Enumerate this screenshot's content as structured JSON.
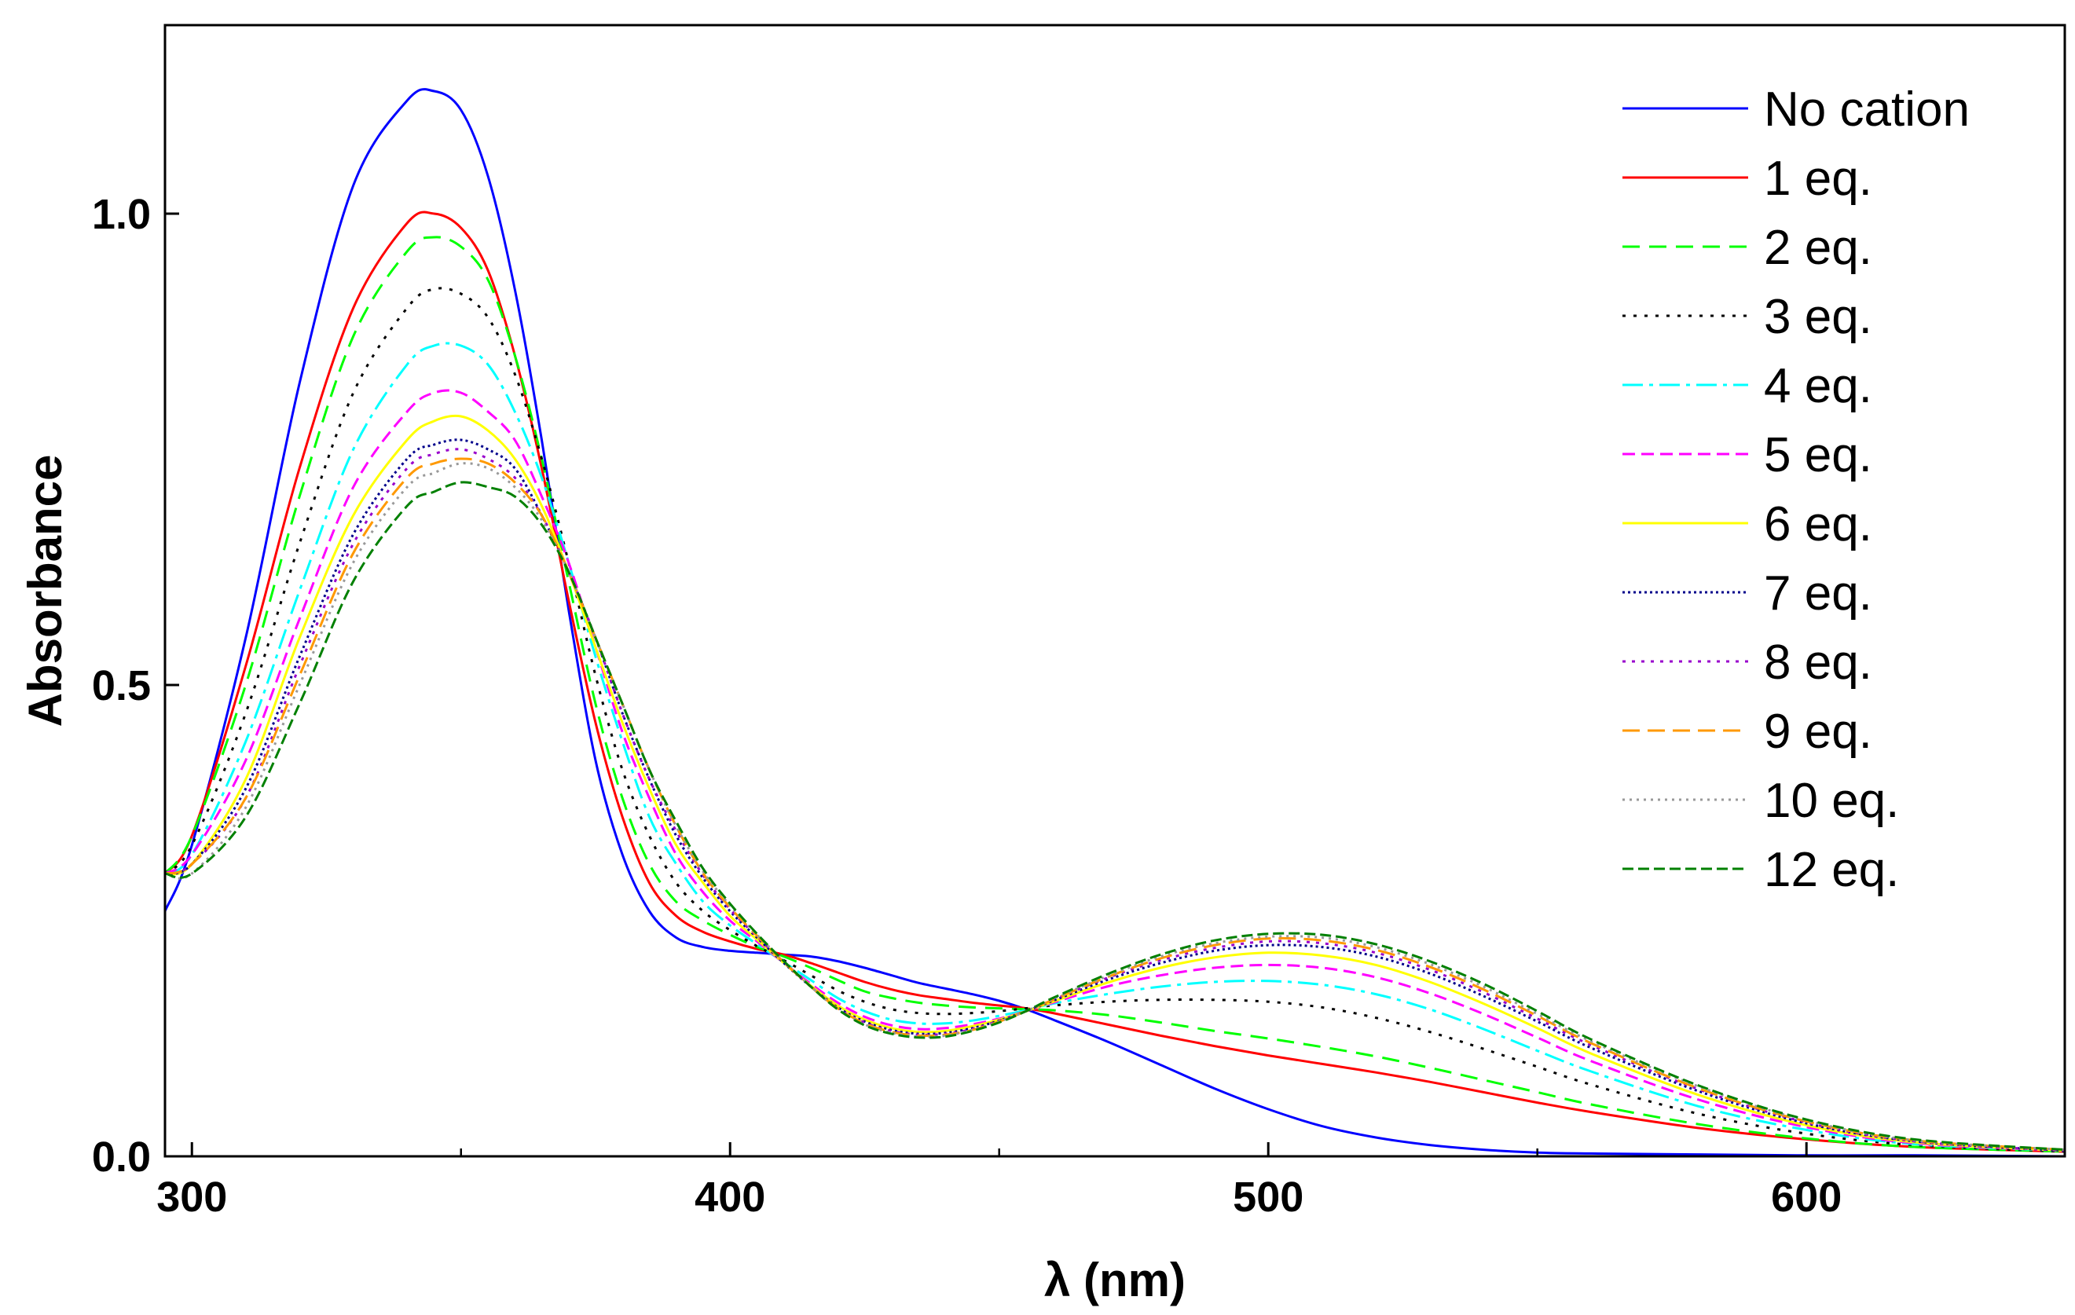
{
  "chart_data": {
    "type": "line",
    "title": "",
    "xlabel": "λ (nm)",
    "ylabel": "Absorbance",
    "xlim": [
      295,
      648
    ],
    "ylim": [
      0.0,
      1.2
    ],
    "xticks": [
      300,
      400,
      500,
      600
    ],
    "yticks": [
      0.0,
      0.5,
      1.0
    ],
    "xtick_labels": [
      "300",
      "400",
      "500",
      "600"
    ],
    "ytick_labels": [
      "0.0",
      "0.5",
      "1.0"
    ],
    "grid": false,
    "legend_position": "top-right",
    "x": [
      295,
      300,
      310,
      320,
      330,
      340,
      345,
      350,
      355,
      360,
      365,
      370,
      375,
      380,
      385,
      390,
      395,
      400,
      405,
      410,
      415,
      420,
      425,
      430,
      435,
      440,
      445,
      450,
      455,
      460,
      470,
      480,
      490,
      500,
      510,
      520,
      530,
      540,
      550,
      560,
      580,
      600,
      620,
      648
    ],
    "series": [
      {
        "name": "No cation",
        "color": "#0000ff",
        "dash": "",
        "values": [
          0.26,
          0.33,
          0.55,
          0.82,
          1.03,
          1.12,
          1.13,
          1.11,
          1.04,
          0.92,
          0.76,
          0.58,
          0.42,
          0.32,
          0.26,
          0.232,
          0.222,
          0.218,
          0.216,
          0.214,
          0.212,
          0.207,
          0.2,
          0.192,
          0.184,
          0.178,
          0.172,
          0.165,
          0.156,
          0.145,
          0.122,
          0.097,
          0.072,
          0.05,
          0.032,
          0.02,
          0.012,
          0.007,
          0.004,
          0.003,
          0.002,
          0.001,
          0.001,
          0.0
        ]
      },
      {
        "name": "1 eq.",
        "color": "#ff0000",
        "dash": "",
        "values": [
          0.3,
          0.34,
          0.52,
          0.73,
          0.9,
          0.99,
          1.0,
          0.985,
          0.94,
          0.85,
          0.73,
          0.59,
          0.46,
          0.36,
          0.29,
          0.255,
          0.238,
          0.228,
          0.22,
          0.214,
          0.205,
          0.195,
          0.185,
          0.177,
          0.171,
          0.167,
          0.163,
          0.16,
          0.157,
          0.152,
          0.14,
          0.128,
          0.117,
          0.107,
          0.098,
          0.089,
          0.079,
          0.068,
          0.057,
          0.047,
          0.03,
          0.018,
          0.01,
          0.005
        ]
      },
      {
        "name": "2 eq.",
        "color": "#00ff00",
        "dash": "22 12",
        "values": [
          0.3,
          0.34,
          0.5,
          0.7,
          0.87,
          0.96,
          0.975,
          0.965,
          0.93,
          0.85,
          0.74,
          0.61,
          0.48,
          0.38,
          0.31,
          0.27,
          0.25,
          0.235,
          0.222,
          0.212,
          0.2,
          0.187,
          0.175,
          0.168,
          0.163,
          0.16,
          0.158,
          0.157,
          0.156,
          0.155,
          0.15,
          0.142,
          0.133,
          0.125,
          0.116,
          0.106,
          0.094,
          0.081,
          0.068,
          0.055,
          0.034,
          0.019,
          0.01,
          0.005
        ]
      },
      {
        "name": "3 eq.",
        "color": "#000000",
        "dash": "4 10",
        "values": [
          0.3,
          0.33,
          0.47,
          0.65,
          0.81,
          0.9,
          0.92,
          0.915,
          0.89,
          0.83,
          0.74,
          0.63,
          0.51,
          0.41,
          0.34,
          0.29,
          0.26,
          0.24,
          0.223,
          0.208,
          0.192,
          0.176,
          0.164,
          0.156,
          0.152,
          0.151,
          0.152,
          0.154,
          0.157,
          0.16,
          0.164,
          0.166,
          0.166,
          0.164,
          0.158,
          0.147,
          0.132,
          0.114,
          0.095,
          0.076,
          0.045,
          0.024,
          0.012,
          0.005
        ]
      },
      {
        "name": "4 eq.",
        "color": "#00ffff",
        "dash": "26 8 5 8",
        "values": [
          0.3,
          0.32,
          0.44,
          0.6,
          0.75,
          0.84,
          0.86,
          0.86,
          0.84,
          0.79,
          0.72,
          0.63,
          0.53,
          0.44,
          0.36,
          0.31,
          0.27,
          0.245,
          0.225,
          0.206,
          0.187,
          0.168,
          0.154,
          0.145,
          0.141,
          0.141,
          0.144,
          0.149,
          0.155,
          0.162,
          0.172,
          0.18,
          0.185,
          0.186,
          0.182,
          0.172,
          0.156,
          0.135,
          0.112,
          0.09,
          0.053,
          0.028,
          0.013,
          0.006
        ]
      },
      {
        "name": "5 eq.",
        "color": "#ff00ff",
        "dash": "16 8",
        "values": [
          0.3,
          0.32,
          0.42,
          0.57,
          0.71,
          0.79,
          0.81,
          0.81,
          0.79,
          0.76,
          0.7,
          0.63,
          0.54,
          0.45,
          0.38,
          0.32,
          0.28,
          0.25,
          0.228,
          0.205,
          0.183,
          0.163,
          0.148,
          0.139,
          0.135,
          0.136,
          0.14,
          0.146,
          0.154,
          0.163,
          0.18,
          0.192,
          0.2,
          0.203,
          0.2,
          0.19,
          0.173,
          0.151,
          0.126,
          0.101,
          0.06,
          0.031,
          0.014,
          0.006
        ]
      },
      {
        "name": "6 eq.",
        "color": "#ffff00",
        "dash": "",
        "values": [
          0.3,
          0.31,
          0.4,
          0.55,
          0.68,
          0.76,
          0.78,
          0.785,
          0.77,
          0.74,
          0.69,
          0.62,
          0.54,
          0.46,
          0.39,
          0.33,
          0.29,
          0.255,
          0.23,
          0.205,
          0.181,
          0.16,
          0.145,
          0.136,
          0.132,
          0.133,
          0.138,
          0.145,
          0.154,
          0.164,
          0.184,
          0.2,
          0.211,
          0.216,
          0.213,
          0.203,
          0.185,
          0.162,
          0.136,
          0.109,
          0.065,
          0.033,
          0.015,
          0.006
        ]
      },
      {
        "name": "7 eq.",
        "color": "#00008b",
        "dash": "3 4",
        "values": [
          0.3,
          0.31,
          0.39,
          0.53,
          0.66,
          0.74,
          0.755,
          0.76,
          0.75,
          0.73,
          0.68,
          0.62,
          0.55,
          0.47,
          0.4,
          0.34,
          0.295,
          0.26,
          0.232,
          0.205,
          0.18,
          0.158,
          0.143,
          0.134,
          0.13,
          0.131,
          0.136,
          0.144,
          0.154,
          0.165,
          0.187,
          0.205,
          0.218,
          0.224,
          0.222,
          0.212,
          0.194,
          0.17,
          0.143,
          0.115,
          0.069,
          0.035,
          0.016,
          0.006
        ]
      },
      {
        "name": "8 eq.",
        "color": "#9900cc",
        "dash": "4 8",
        "values": [
          0.3,
          0.31,
          0.38,
          0.52,
          0.65,
          0.73,
          0.745,
          0.75,
          0.74,
          0.72,
          0.68,
          0.62,
          0.55,
          0.47,
          0.4,
          0.345,
          0.298,
          0.262,
          0.233,
          0.206,
          0.18,
          0.157,
          0.142,
          0.133,
          0.129,
          0.13,
          0.135,
          0.144,
          0.154,
          0.166,
          0.189,
          0.208,
          0.221,
          0.228,
          0.226,
          0.216,
          0.198,
          0.174,
          0.146,
          0.118,
          0.071,
          0.036,
          0.016,
          0.006
        ]
      },
      {
        "name": "9 eq.",
        "color": "#ff9900",
        "dash": "22 10",
        "values": [
          0.3,
          0.31,
          0.38,
          0.51,
          0.64,
          0.72,
          0.735,
          0.74,
          0.735,
          0.715,
          0.68,
          0.62,
          0.55,
          0.48,
          0.41,
          0.35,
          0.3,
          0.264,
          0.234,
          0.206,
          0.18,
          0.157,
          0.141,
          0.132,
          0.128,
          0.129,
          0.134,
          0.143,
          0.154,
          0.166,
          0.19,
          0.21,
          0.224,
          0.231,
          0.229,
          0.219,
          0.201,
          0.177,
          0.149,
          0.12,
          0.072,
          0.037,
          0.017,
          0.007
        ]
      },
      {
        "name": "10 eq.",
        "color": "#999999",
        "dash": "3 6",
        "values": [
          0.3,
          0.3,
          0.37,
          0.5,
          0.63,
          0.71,
          0.725,
          0.735,
          0.73,
          0.71,
          0.675,
          0.62,
          0.55,
          0.48,
          0.41,
          0.35,
          0.302,
          0.266,
          0.235,
          0.207,
          0.18,
          0.156,
          0.14,
          0.131,
          0.127,
          0.128,
          0.134,
          0.143,
          0.154,
          0.167,
          0.191,
          0.212,
          0.226,
          0.233,
          0.232,
          0.222,
          0.204,
          0.18,
          0.151,
          0.122,
          0.074,
          0.038,
          0.017,
          0.007
        ]
      },
      {
        "name": "12 eq.",
        "color": "#008000",
        "dash": "14 6",
        "values": [
          0.3,
          0.3,
          0.36,
          0.48,
          0.61,
          0.69,
          0.705,
          0.715,
          0.71,
          0.7,
          0.67,
          0.62,
          0.55,
          0.48,
          0.41,
          0.355,
          0.305,
          0.268,
          0.236,
          0.207,
          0.18,
          0.156,
          0.139,
          0.13,
          0.126,
          0.127,
          0.133,
          0.142,
          0.154,
          0.168,
          0.193,
          0.214,
          0.229,
          0.236,
          0.235,
          0.225,
          0.207,
          0.183,
          0.154,
          0.124,
          0.075,
          0.039,
          0.018,
          0.007
        ]
      }
    ]
  }
}
